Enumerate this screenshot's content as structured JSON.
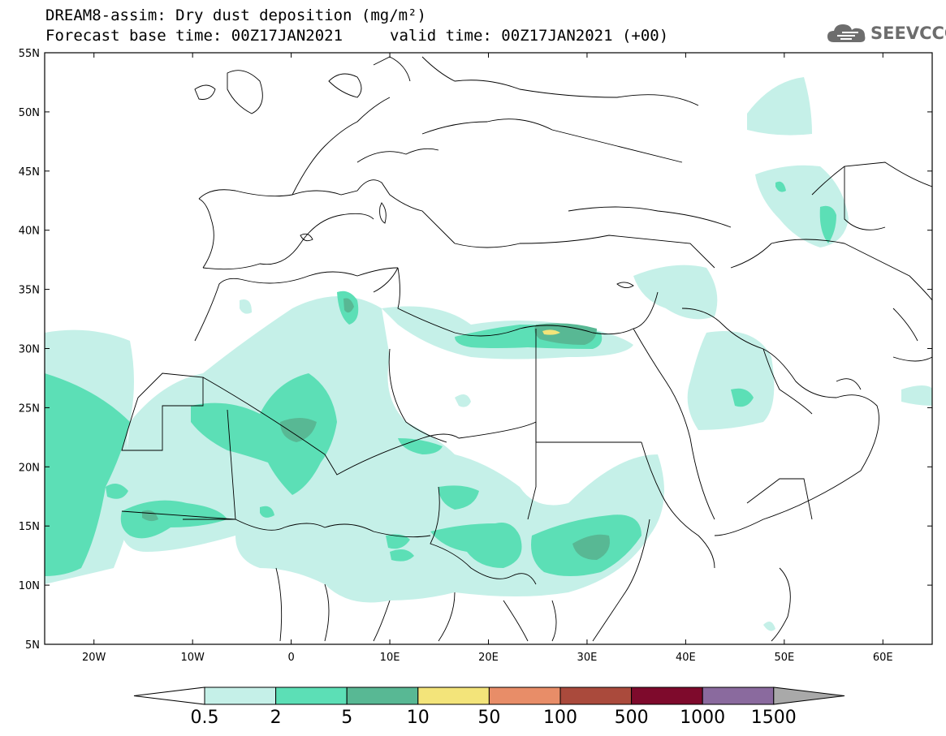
{
  "title": {
    "line1": "DREAM8-assim: Dry dust deposition (mg/m²)",
    "line2_left": "Forecast base time: 00Z17JAN2021",
    "line2_right": "valid time: 00Z17JAN2021 (+00)"
  },
  "logo": {
    "text": "SEEVCCC",
    "icon": "cloud-icon"
  },
  "axes": {
    "lon_range": [
      -25,
      65
    ],
    "lat_range": [
      5,
      55
    ],
    "lat_labels": [
      "55N",
      "50N",
      "45N",
      "40N",
      "35N",
      "30N",
      "25N",
      "20N",
      "15N",
      "10N",
      "5N"
    ],
    "lat_values": [
      55,
      50,
      45,
      40,
      35,
      30,
      25,
      20,
      15,
      10,
      5
    ],
    "lon_labels": [
      "20W",
      "10W",
      "0",
      "10E",
      "20E",
      "30E",
      "40E",
      "50E",
      "60E"
    ],
    "lon_values": [
      -20,
      -10,
      0,
      10,
      20,
      30,
      40,
      50,
      60
    ]
  },
  "colorbar": {
    "labels": [
      "0.5",
      "2",
      "5",
      "10",
      "50",
      "100",
      "500",
      "1000",
      "1500"
    ],
    "colors": [
      "#c5f0e8",
      "#5cdfb6",
      "#58b894",
      "#f3e47a",
      "#e88d68",
      "#aa4a3c",
      "#7e0a2c",
      "#8a6a9e",
      "#a9a9a9"
    ],
    "under_color": "#ffffff"
  },
  "colors": {
    "light": "#c5f0e8",
    "medium": "#5cdfb6",
    "dark": "#58b894",
    "yellow": "#f3e47a",
    "border": "#000000"
  }
}
